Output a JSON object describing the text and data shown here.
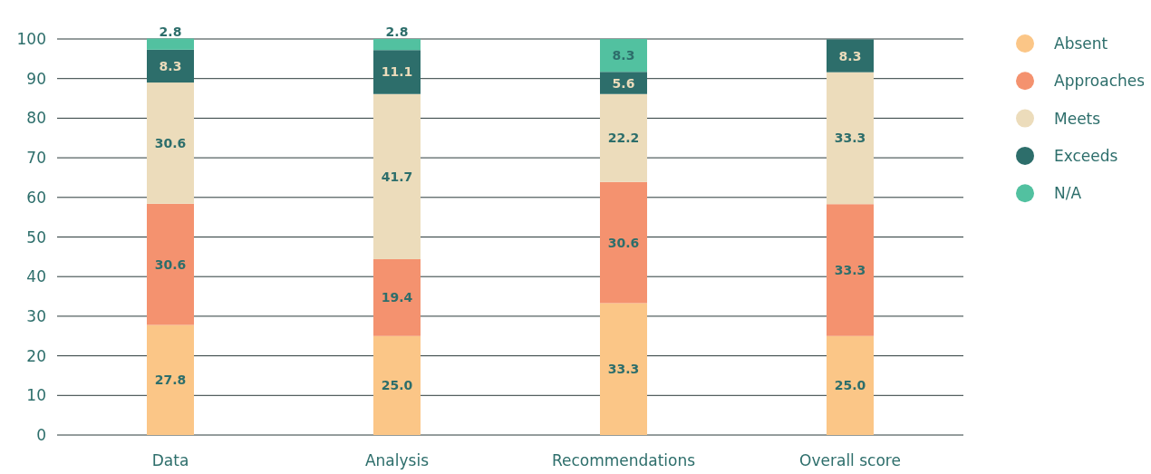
{
  "chart_data": {
    "type": "bar",
    "stacked": true,
    "categories": [
      "Data",
      "Analysis",
      "Recommendations",
      "Overall score"
    ],
    "series": [
      {
        "name": "Absent",
        "color": "#fbc687",
        "values": [
          27.8,
          25.0,
          33.3,
          25.0
        ],
        "value_labels": [
          "27.8",
          "25.0",
          "33.3",
          "25.0"
        ]
      },
      {
        "name": "Approaches",
        "color": "#f4926f",
        "values": [
          30.6,
          19.4,
          30.6,
          33.3
        ],
        "value_labels": [
          "30.6",
          "19.4",
          "30.6",
          "33.3"
        ]
      },
      {
        "name": "Meets",
        "color": "#ecdcbb",
        "values": [
          30.6,
          41.7,
          22.2,
          33.3
        ],
        "value_labels": [
          "30.6",
          "41.7",
          "22.2",
          "33.3"
        ]
      },
      {
        "name": "Exceeds",
        "color": "#2d6e6b",
        "values": [
          8.3,
          11.1,
          5.6,
          8.3
        ],
        "value_labels": [
          "8.3",
          "11.1",
          "5.6",
          "8.3"
        ]
      },
      {
        "name": "N/A",
        "color": "#52c1a0",
        "values": [
          2.8,
          2.8,
          8.3,
          0
        ],
        "value_labels": [
          "2.8",
          "2.8",
          "8.3",
          null
        ]
      }
    ],
    "ylim": [
      0,
      100
    ],
    "yticks": [
      0,
      10,
      20,
      30,
      40,
      50,
      60,
      70,
      80,
      90,
      100
    ],
    "grid": "y",
    "legend": "top right"
  }
}
